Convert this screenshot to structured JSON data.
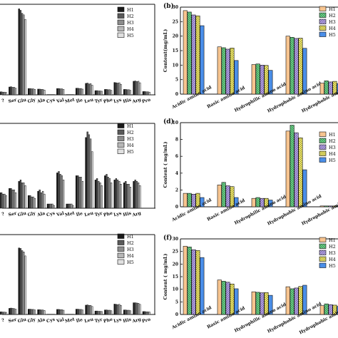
{
  "chart_data": [
    {
      "panel": "a",
      "type": "bar",
      "categories": [
        "?",
        "Ser",
        "Glu",
        "Gly",
        "Ala",
        "Cys",
        "Val",
        "Met",
        "Ile",
        "Leu",
        "Tyr",
        "Phe",
        "Lys",
        "His",
        "Arg",
        "Pro"
      ],
      "series": [
        {
          "name": "H1",
          "values": [
            1.0,
            2.6,
            28.5,
            2.1,
            1.9,
            0.1,
            2.1,
            0.1,
            2.2,
            3.8,
            1.4,
            1.8,
            4.1,
            1.8,
            4.5,
            1.1
          ]
        },
        {
          "name": "H2",
          "values": [
            1.0,
            2.7,
            28.0,
            2.1,
            1.9,
            0.1,
            2.1,
            0.1,
            2.2,
            3.9,
            1.4,
            1.8,
            4.0,
            1.8,
            4.6,
            1.1
          ]
        },
        {
          "name": "H3",
          "values": [
            0.9,
            2.5,
            27.0,
            2.0,
            1.8,
            0.1,
            2.0,
            0.1,
            2.1,
            3.6,
            1.3,
            1.7,
            3.9,
            1.7,
            4.4,
            1.0
          ]
        },
        {
          "name": "H4",
          "values": [
            0.9,
            2.5,
            26.5,
            2.0,
            1.8,
            0.1,
            2.0,
            0.1,
            2.1,
            3.7,
            1.3,
            1.7,
            4.0,
            1.7,
            4.5,
            1.0
          ]
        },
        {
          "name": "H5",
          "values": [
            0.8,
            2.2,
            25.0,
            1.8,
            1.6,
            0.1,
            1.8,
            0.1,
            1.9,
            3.2,
            1.2,
            1.5,
            3.5,
            1.5,
            4.0,
            0.9
          ]
        }
      ],
      "ylim": [
        0,
        30
      ]
    },
    {
      "panel": "b",
      "type": "bar",
      "categories": [
        "Acidic amino acid",
        "Basic amino acid",
        "Hydrophilic amino acid",
        "Hydrophobic amino acid",
        "Hydrophobic amino acid"
      ],
      "series": [
        {
          "name": "H1",
          "values": [
            28.8,
            16.3,
            10.2,
            20.0,
            3.8
          ]
        },
        {
          "name": "H2",
          "values": [
            28.3,
            16.0,
            10.4,
            19.6,
            4.6
          ]
        },
        {
          "name": "H3",
          "values": [
            27.3,
            15.5,
            10.0,
            19.2,
            4.2
          ]
        },
        {
          "name": "H4",
          "values": [
            27.0,
            15.9,
            9.9,
            19.3,
            4.4
          ]
        },
        {
          "name": "H5",
          "values": [
            23.6,
            11.6,
            8.2,
            15.8,
            3.6
          ]
        }
      ],
      "ylabel": "Content(mg/mL)",
      "ylim": [
        0,
        30
      ],
      "yticks": [
        0,
        5,
        10,
        15,
        20,
        25,
        30
      ]
    },
    {
      "panel": "c",
      "type": "bar",
      "categories": [
        "?",
        "Ser",
        "Glu",
        "Gly",
        "Ala",
        "Cys",
        "Val",
        "Met",
        "Ile",
        "Leu",
        "Tyr",
        "Phe",
        "Lys",
        "His",
        "Arg"
      ],
      "series": [
        {
          "name": "H1",
          "values": [
            1.1,
            1.4,
            1.9,
            0.9,
            1.2,
            0.3,
            2.5,
            0.3,
            2.3,
            5.0,
            2.0,
            2.3,
            2.0,
            1.8,
            1.9
          ]
        },
        {
          "name": "H2",
          "values": [
            1.1,
            1.4,
            2.0,
            0.9,
            1.3,
            0.3,
            2.6,
            0.3,
            2.3,
            5.4,
            2.1,
            2.4,
            2.1,
            1.9,
            2.0
          ]
        },
        {
          "name": "H3",
          "values": [
            1.0,
            1.3,
            1.8,
            0.8,
            1.1,
            0.3,
            2.4,
            0.3,
            2.2,
            5.2,
            1.9,
            2.2,
            2.0,
            1.7,
            1.9
          ]
        },
        {
          "name": "H4",
          "values": [
            1.0,
            1.3,
            1.8,
            0.8,
            1.2,
            0.3,
            2.3,
            0.3,
            2.2,
            4.9,
            1.8,
            2.1,
            1.9,
            1.7,
            1.8
          ]
        },
        {
          "name": "H5",
          "values": [
            0.9,
            1.1,
            1.6,
            0.7,
            1.0,
            0.2,
            2.0,
            0.2,
            1.9,
            4.0,
            1.6,
            1.8,
            1.7,
            1.5,
            1.6
          ]
        }
      ],
      "ylim": [
        0,
        6
      ]
    },
    {
      "panel": "d",
      "type": "bar",
      "categories": [
        "Acidic amino acid",
        "Basic amino acid",
        "Hydrophilic amino acid",
        "Hydrophobic amino acid",
        "Hydrophobic amino acid"
      ],
      "series": [
        {
          "name": "H1",
          "values": [
            1.6,
            2.6,
            1.0,
            9.0,
            0.1
          ]
        },
        {
          "name": "H2",
          "values": [
            1.6,
            2.9,
            1.1,
            9.7,
            0.1
          ]
        },
        {
          "name": "H3",
          "values": [
            1.5,
            2.5,
            1.0,
            8.8,
            0.1
          ]
        },
        {
          "name": "H4",
          "values": [
            1.6,
            2.4,
            1.0,
            8.2,
            0.1
          ]
        },
        {
          "name": "H5",
          "values": [
            1.1,
            1.1,
            0.8,
            4.4,
            0.1
          ]
        }
      ],
      "ylabel": "Content ( mg/mL)",
      "ylim": [
        0,
        10
      ],
      "yticks": [
        0,
        2,
        4,
        6,
        8,
        10
      ]
    },
    {
      "panel": "e",
      "type": "bar",
      "categories": [
        "?",
        "Ser",
        "Glu",
        "Gly",
        "Ala",
        "Cys",
        "Val",
        "Met",
        "Ile",
        "Leu",
        "Tyr",
        "Phe",
        "Lys",
        "His",
        "Arg",
        "Pro"
      ],
      "series": [
        {
          "name": "H1",
          "values": [
            1.0,
            2.3,
            25.0,
            2.0,
            1.8,
            0.1,
            1.9,
            0.1,
            2.0,
            3.5,
            1.3,
            1.7,
            3.9,
            1.7,
            4.4,
            1.1
          ]
        },
        {
          "name": "H2",
          "values": [
            1.0,
            2.4,
            24.8,
            2.0,
            1.8,
            0.1,
            1.9,
            0.1,
            2.0,
            3.6,
            1.3,
            1.7,
            3.8,
            1.7,
            4.4,
            1.1
          ]
        },
        {
          "name": "H3",
          "values": [
            0.9,
            2.3,
            24.0,
            1.9,
            1.7,
            0.1,
            1.8,
            0.1,
            1.9,
            3.4,
            1.2,
            1.6,
            3.7,
            1.6,
            4.3,
            1.0
          ]
        },
        {
          "name": "H4",
          "values": [
            0.9,
            2.2,
            23.5,
            1.9,
            1.7,
            0.1,
            1.8,
            0.1,
            1.9,
            3.4,
            1.2,
            1.6,
            3.8,
            1.6,
            4.2,
            1.0
          ]
        },
        {
          "name": "H5",
          "values": [
            0.8,
            2.0,
            22.0,
            1.7,
            1.5,
            0.1,
            1.6,
            0.1,
            1.7,
            3.0,
            1.1,
            1.4,
            3.4,
            1.4,
            3.8,
            0.9
          ]
        }
      ],
      "ylim": [
        0,
        30
      ]
    },
    {
      "panel": "f",
      "type": "bar",
      "categories": [
        "Acidic amino acid",
        "Basic amino acid",
        "Hydrophilic amino acid",
        "Hydrophobic amino acid",
        "Hydrophobic amino acid w"
      ],
      "series": [
        {
          "name": "H1",
          "values": [
            27.1,
            13.7,
            9.0,
            11.0,
            3.5
          ]
        },
        {
          "name": "H2",
          "values": [
            26.8,
            13.2,
            8.8,
            10.2,
            4.2
          ]
        },
        {
          "name": "H3",
          "values": [
            25.7,
            12.8,
            8.6,
            10.5,
            3.9
          ]
        },
        {
          "name": "H4",
          "values": [
            25.4,
            12.1,
            8.7,
            11.1,
            3.7
          ]
        },
        {
          "name": "H5",
          "values": [
            22.6,
            10.2,
            7.6,
            11.6,
            3.2
          ]
        }
      ],
      "ylabel": "Content ( mg/mL)",
      "ylim": [
        0,
        30
      ],
      "yticks": [
        0,
        5,
        10,
        15,
        20,
        25,
        30
      ]
    }
  ],
  "panel_labels": {
    "b": "(b)",
    "d": "(d)",
    "f": "(f)"
  },
  "legend_labels": {
    "H1": "H1",
    "H2": "H2",
    "H3": "H3",
    "H4": "H4",
    "H5": "H5"
  },
  "grayscale_colors": [
    "#1a1a1a",
    "#5a5a5a",
    "#8c8c8c",
    "#b7b7b7",
    "#e0e0e0"
  ],
  "color_fills": [
    "#f7c48f",
    "#6fd08a",
    "#b9a7e6",
    "#f4ee77",
    "#4a8ee8"
  ],
  "color_patterns": [
    "solid",
    "hatch-down",
    "hatch-up",
    "cross",
    "solid"
  ]
}
